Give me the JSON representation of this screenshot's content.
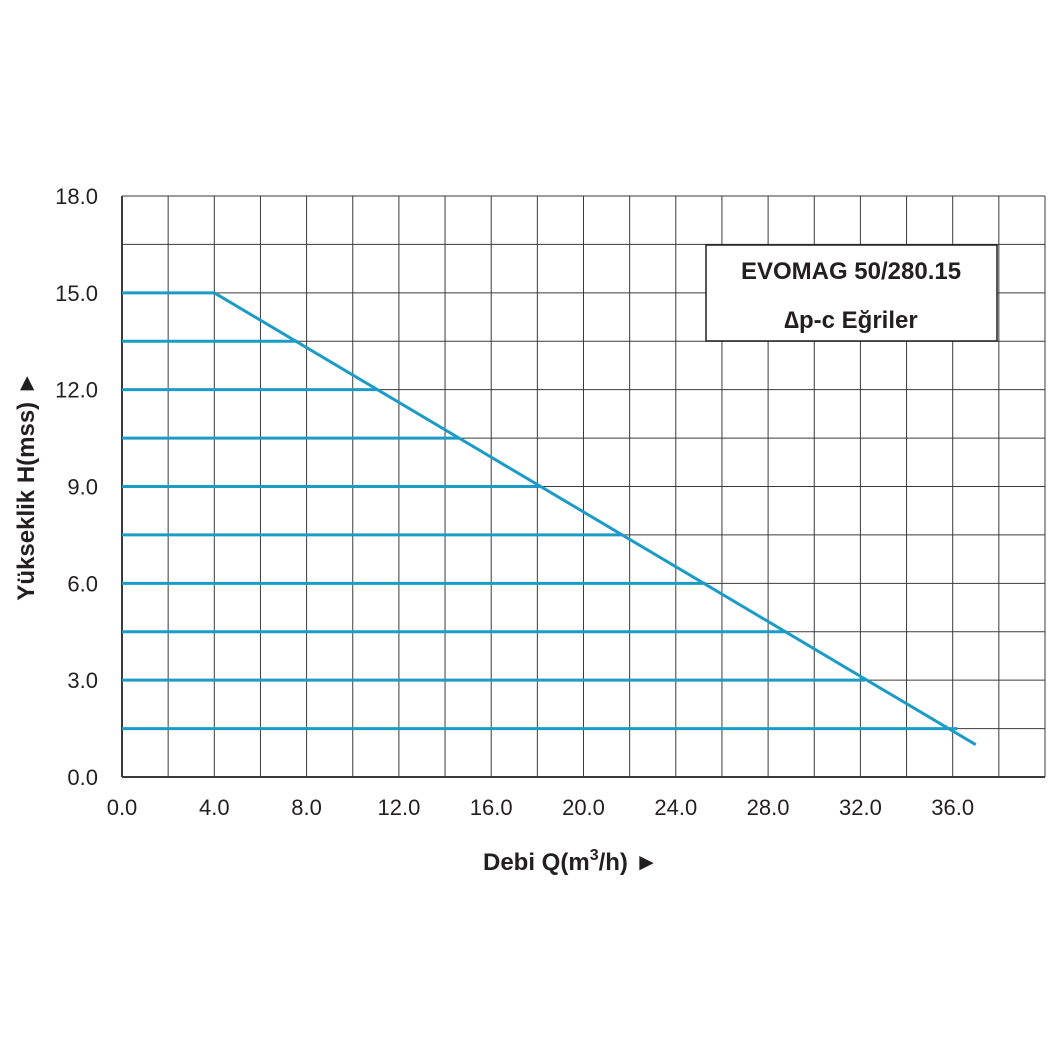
{
  "chart_data": {
    "type": "line",
    "title_lines": [
      "EVOMAG 50/280.15",
      "∆p-c Eğriler"
    ],
    "xlabel": "Debi Q(m",
    "xlabel_sup": "3",
    "xlabel_tail": "/h) ►",
    "ylabel": "Yükseklik H(mss) ►",
    "xlim": [
      0,
      40
    ],
    "ylim": [
      0,
      18
    ],
    "x_grid_step": 2,
    "y_grid_step": 1.5,
    "x_ticks": [
      0,
      4,
      8,
      12,
      16,
      20,
      24,
      28,
      32,
      36
    ],
    "x_tick_labels": [
      "0.0",
      "4.0",
      "8.0",
      "12.0",
      "16.0",
      "20.0",
      "24.0",
      "28.0",
      "32.0",
      "36.0"
    ],
    "y_ticks": [
      0,
      3,
      6,
      9,
      12,
      15,
      18
    ],
    "y_tick_labels": [
      "0.0",
      "3.0",
      "6.0",
      "9.0",
      "12.0",
      "15.0",
      "18.0"
    ],
    "grid": true,
    "legend_position": "top-right",
    "series_color": "#1c9bc7",
    "grid_color": "#3a3a3a",
    "envelope": [
      [
        4.0,
        15.0
      ],
      [
        37.0,
        1.0
      ]
    ],
    "series": [
      {
        "x": [
          0,
          4.0
        ],
        "y": [
          15.0,
          15.0
        ]
      },
      {
        "x": [
          0,
          7.6
        ],
        "y": [
          13.5,
          13.5
        ]
      },
      {
        "x": [
          0,
          11.1
        ],
        "y": [
          12.0,
          12.0
        ]
      },
      {
        "x": [
          0,
          14.6
        ],
        "y": [
          10.5,
          10.5
        ]
      },
      {
        "x": [
          0,
          18.1
        ],
        "y": [
          9.0,
          9.0
        ]
      },
      {
        "x": [
          0,
          21.7
        ],
        "y": [
          7.5,
          7.5
        ]
      },
      {
        "x": [
          0,
          25.3
        ],
        "y": [
          6.0,
          6.0
        ]
      },
      {
        "x": [
          0,
          28.8
        ],
        "y": [
          4.5,
          4.5
        ]
      },
      {
        "x": [
          0,
          32.2
        ],
        "y": [
          3.0,
          3.0
        ]
      },
      {
        "x": [
          0,
          36.2
        ],
        "y": [
          1.5,
          1.5
        ]
      }
    ]
  }
}
